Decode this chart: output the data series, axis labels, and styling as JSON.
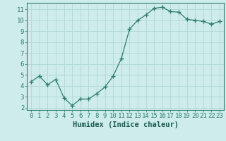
{
  "x": [
    0,
    1,
    2,
    3,
    4,
    5,
    6,
    7,
    8,
    9,
    10,
    11,
    12,
    13,
    14,
    15,
    16,
    17,
    18,
    19,
    20,
    21,
    22,
    23
  ],
  "y": [
    4.4,
    4.9,
    4.1,
    4.6,
    2.9,
    2.2,
    2.8,
    2.8,
    3.3,
    3.9,
    4.9,
    6.5,
    9.2,
    10.0,
    10.5,
    11.1,
    11.2,
    10.8,
    10.75,
    10.1,
    10.0,
    9.9,
    9.65,
    9.9
  ],
  "line_color": "#2e7d6e",
  "marker": "+",
  "marker_size": 4,
  "bg_color": "#ceecea",
  "grid_color": "#b0d8d4",
  "xlabel": "Humidex (Indice chaleur)",
  "xlim": [
    -0.5,
    23.5
  ],
  "ylim": [
    1.8,
    11.6
  ],
  "yticks": [
    2,
    3,
    4,
    5,
    6,
    7,
    8,
    9,
    10,
    11
  ],
  "xticks": [
    0,
    1,
    2,
    3,
    4,
    5,
    6,
    7,
    8,
    9,
    10,
    11,
    12,
    13,
    14,
    15,
    16,
    17,
    18,
    19,
    20,
    21,
    22,
    23
  ],
  "tick_color": "#2e7d6e",
  "label_color": "#1a5c50",
  "font_size": 6.5,
  "label_font_size": 7.5
}
